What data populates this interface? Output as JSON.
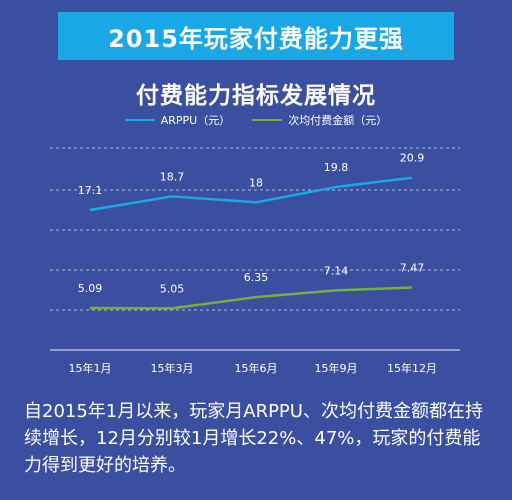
{
  "header": {
    "title": "2015年玩家付费能力更强"
  },
  "chart_data": {
    "type": "line",
    "title": "付费能力指标发展情况",
    "categories": [
      "15年1月",
      "15年3月",
      "15年6月",
      "15年9月",
      "15年12月"
    ],
    "series": [
      {
        "name": "ARPPU（元）",
        "values": [
          17.1,
          18.7,
          18.0,
          19.8,
          20.9
        ],
        "color": "#1aa7e6"
      },
      {
        "name": "次均付费金额（元）",
        "values": [
          5.09,
          5.05,
          6.35,
          7.14,
          7.47
        ],
        "color": "#6fb33c"
      }
    ],
    "grid": true,
    "legend_position": "top"
  },
  "summary": {
    "text": "自2015年1月以来，玩家月ARPPU、次均付费金额都在持续增长，12月分别较1月增长22%、47%，玩家的付费能力得到更好的培养。"
  }
}
